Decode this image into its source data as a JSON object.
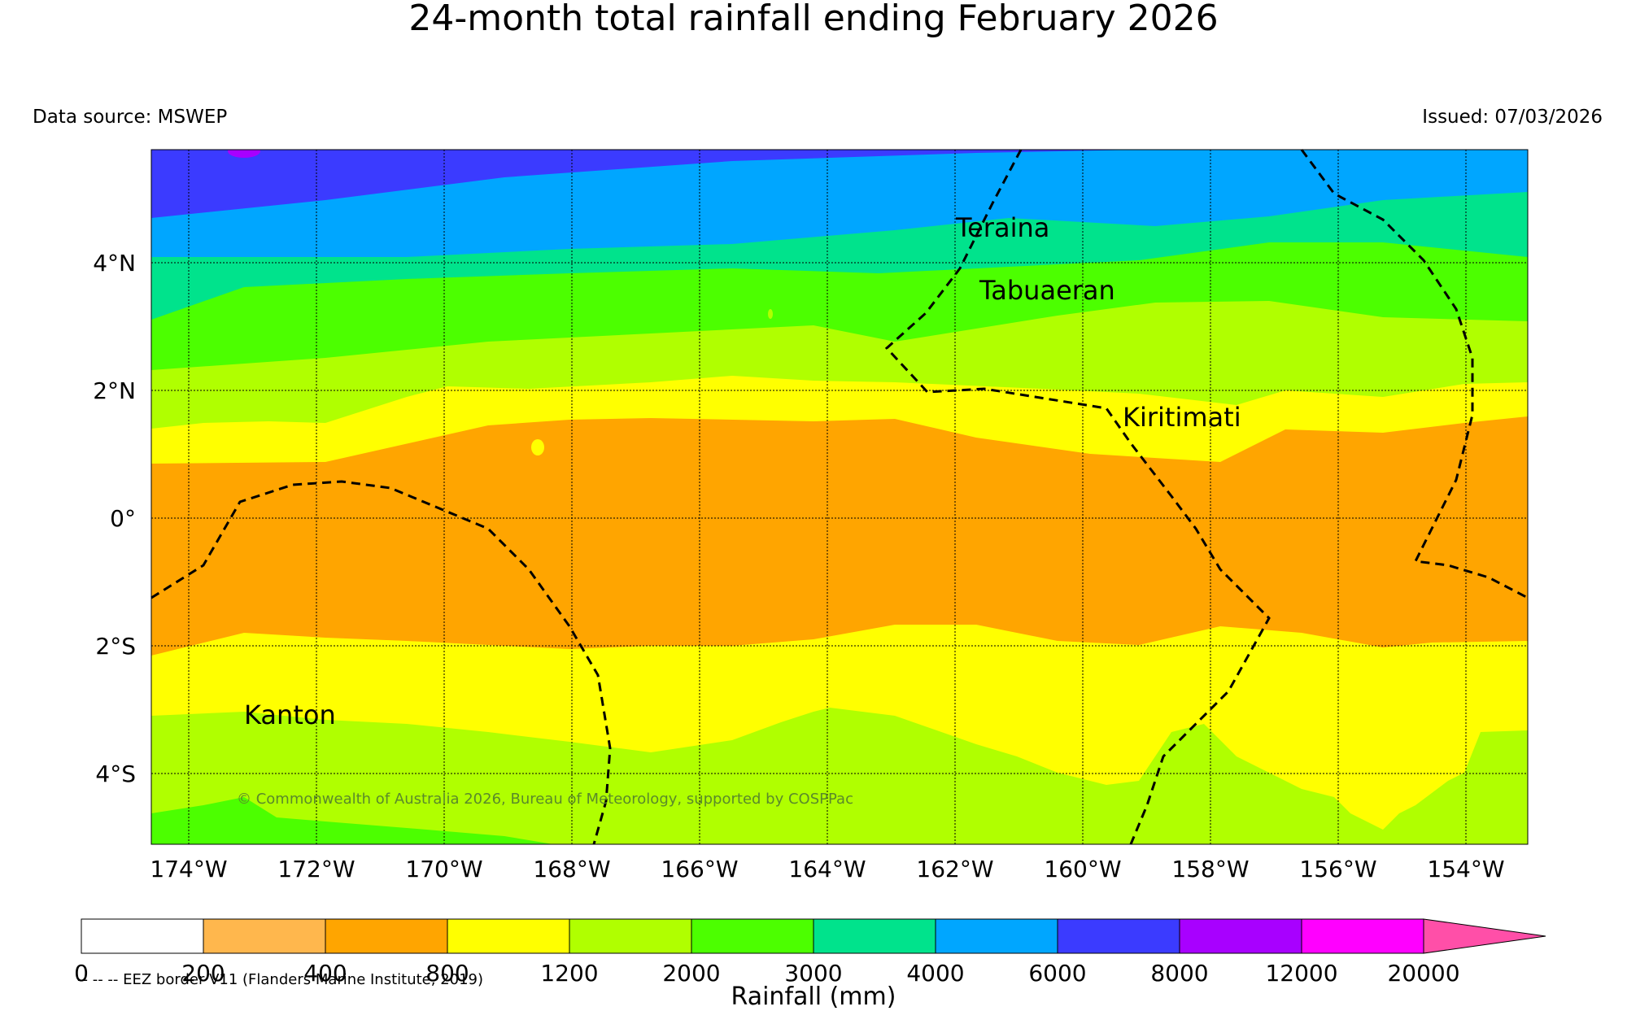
{
  "title": "24-month total rainfall ending February 2026",
  "data_source": "Data source: MSWEP",
  "issued": "Issued: 07/03/2026",
  "copyright": "© Commonwealth of Australia 2026, Bureau of Meteorology, supported by COSPPac",
  "eez_note": "-- -- -- EEZ border V11 (Flanders Marine Institute, 2019)",
  "colorbar": {
    "title": "Rainfall (mm)",
    "ticks": [
      "0",
      "200",
      "400",
      "800",
      "1200",
      "2000",
      "3000",
      "4000",
      "6000",
      "8000",
      "12000",
      "20000"
    ],
    "colors": [
      "#ffffff",
      "#ffb74d",
      "#ffa500",
      "#ffff00",
      "#b0ff00",
      "#4cff00",
      "#00e38c",
      "#00a6ff",
      "#3b3bff",
      "#a800ff",
      "#ff00ff",
      "#ff4fa8"
    ]
  },
  "axes": {
    "lon_labels": [
      "174°W",
      "172°W",
      "170°W",
      "168°W",
      "166°W",
      "164°W",
      "162°W",
      "160°W",
      "158°W",
      "156°W",
      "154°W"
    ],
    "lat_labels": [
      "4°N",
      "2°N",
      "0°",
      "2°S",
      "4°S"
    ]
  },
  "places": [
    {
      "name": "Teraina"
    },
    {
      "name": "Tabuaeran"
    },
    {
      "name": "Kiritimati"
    },
    {
      "name": "Kanton"
    }
  ]
}
